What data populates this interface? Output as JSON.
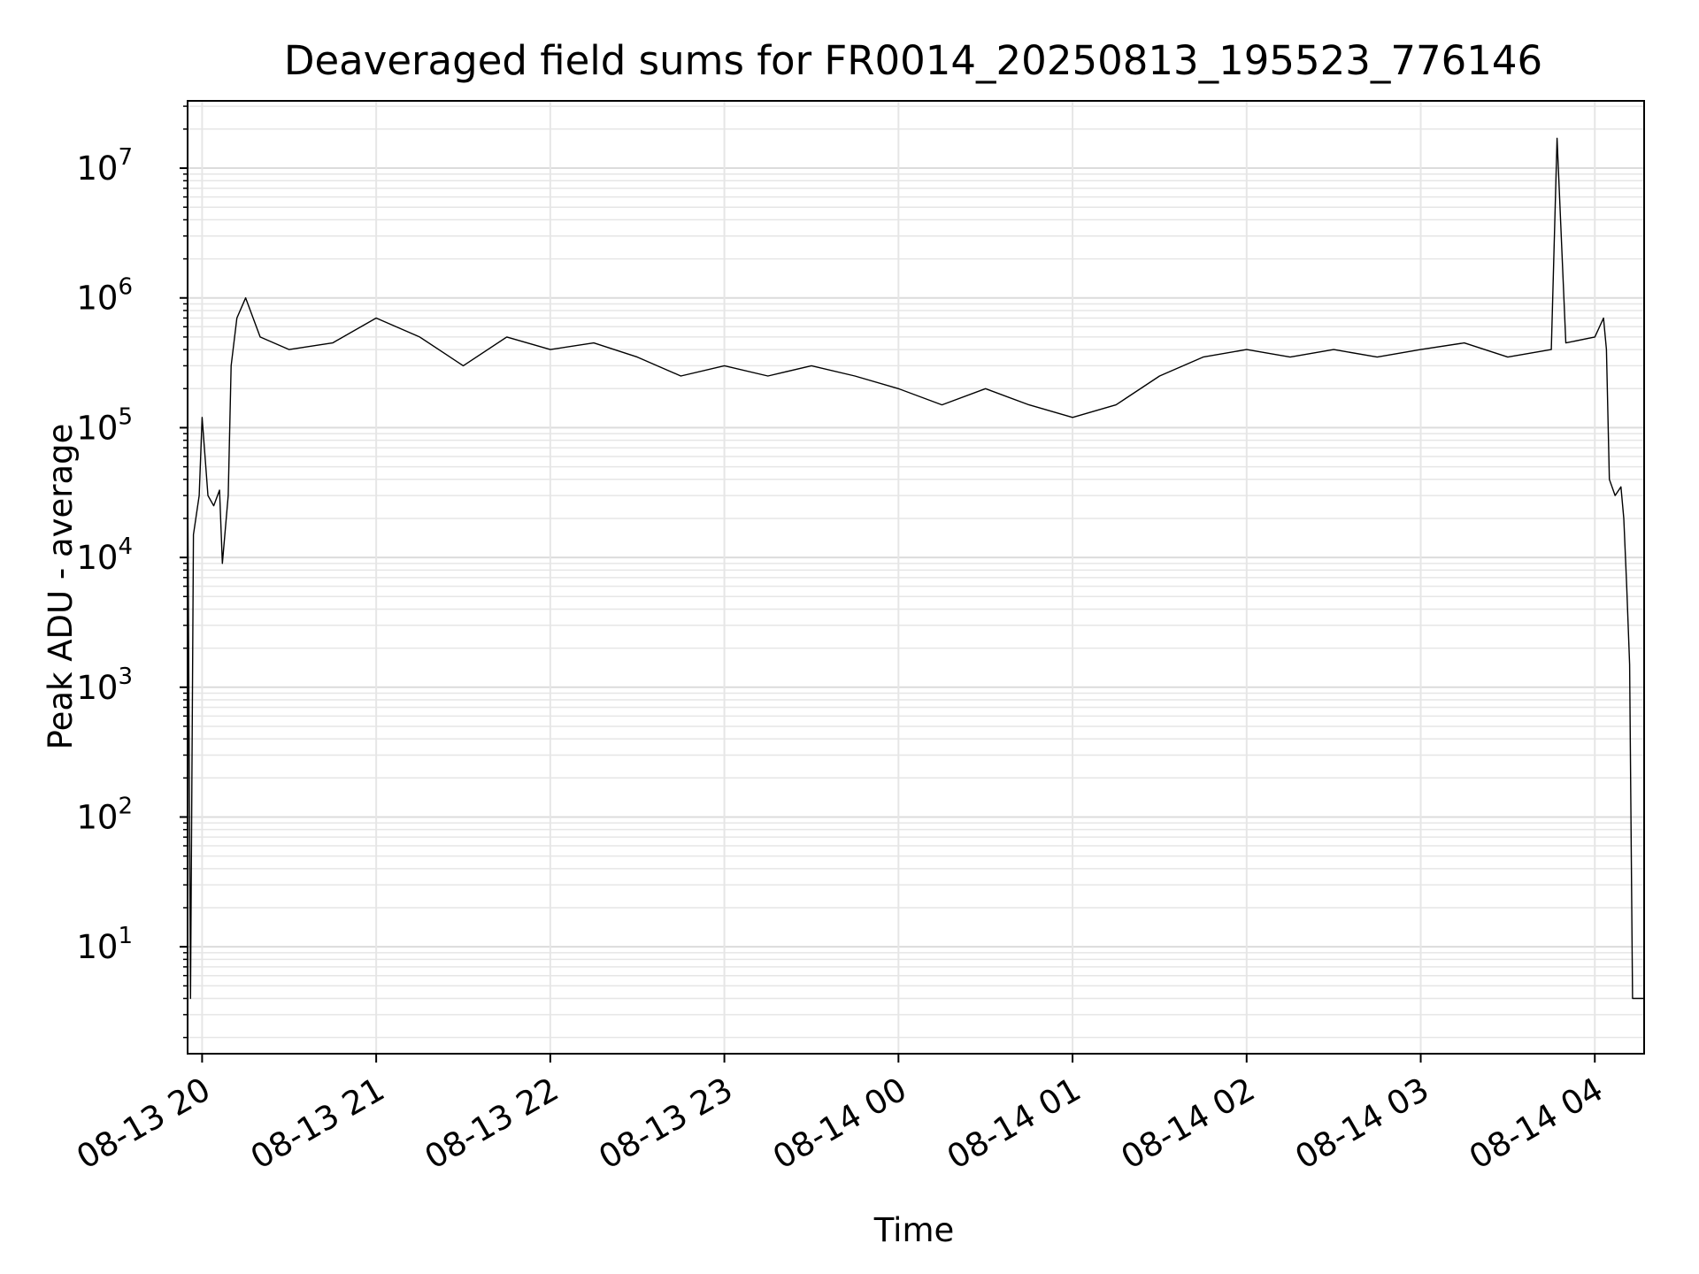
{
  "chart_data": {
    "type": "line",
    "title": "Deaveraged field sums for FR0014_20250813_195523_776146",
    "xlabel": "Time",
    "ylabel": "Peak ADU - average",
    "x_tick_labels": [
      "08-13 20",
      "08-13 21",
      "08-13 22",
      "08-13 23",
      "08-14 00",
      "08-14 01",
      "08-14 02",
      "08-14 03",
      "08-14 04"
    ],
    "y_tick_labels": [
      {
        "base": "10",
        "exp": "1"
      },
      {
        "base": "10",
        "exp": "2"
      },
      {
        "base": "10",
        "exp": "3"
      },
      {
        "base": "10",
        "exp": "4"
      },
      {
        "base": "10",
        "exp": "5"
      },
      {
        "base": "10",
        "exp": "6"
      },
      {
        "base": "10",
        "exp": "7"
      }
    ],
    "y_scale": "log",
    "xlim": [
      "2025-08-13 19:55",
      "2025-08-14 04:17"
    ],
    "ylim": [
      1.5,
      33000000.0
    ],
    "grid": true,
    "line_color": "#000000",
    "series": [
      {
        "x": [
          "2025-08-13 19:55",
          "2025-08-13 19:56",
          "2025-08-13 19:57",
          "2025-08-13 19:59",
          "2025-08-13 20:00",
          "2025-08-13 20:02",
          "2025-08-13 20:04",
          "2025-08-13 20:06",
          "2025-08-13 20:07",
          "2025-08-13 20:09",
          "2025-08-13 20:10",
          "2025-08-13 20:12",
          "2025-08-13 20:15",
          "2025-08-13 20:20",
          "2025-08-13 20:30",
          "2025-08-13 20:45",
          "2025-08-13 21:00",
          "2025-08-13 21:15",
          "2025-08-13 21:30",
          "2025-08-13 21:45",
          "2025-08-13 22:00",
          "2025-08-13 22:15",
          "2025-08-13 22:30",
          "2025-08-13 22:45",
          "2025-08-13 23:00",
          "2025-08-13 23:15",
          "2025-08-13 23:30",
          "2025-08-13 23:45",
          "2025-08-14 00:00",
          "2025-08-14 00:15",
          "2025-08-14 00:30",
          "2025-08-14 00:45",
          "2025-08-14 01:00",
          "2025-08-14 01:15",
          "2025-08-14 01:30",
          "2025-08-14 01:45",
          "2025-08-14 02:00",
          "2025-08-14 02:15",
          "2025-08-14 02:30",
          "2025-08-14 02:45",
          "2025-08-14 03:00",
          "2025-08-14 03:15",
          "2025-08-14 03:30",
          "2025-08-14 03:45",
          "2025-08-14 03:47",
          "2025-08-14 03:50",
          "2025-08-14 04:00",
          "2025-08-14 04:03",
          "2025-08-14 04:04",
          "2025-08-14 04:05",
          "2025-08-14 04:07",
          "2025-08-14 04:09",
          "2025-08-14 04:10",
          "2025-08-14 04:11",
          "2025-08-14 04:12",
          "2025-08-14 04:13",
          "2025-08-14 04:14",
          "2025-08-14 04:17"
        ],
        "y": [
          60000,
          4,
          15000,
          30000,
          120000,
          30000,
          25000,
          33000,
          9000,
          30000,
          300000,
          700000,
          1000000,
          500000,
          400000,
          450000,
          700000,
          500000,
          300000,
          500000,
          400000,
          450000,
          350000,
          250000,
          300000,
          250000,
          300000,
          250000,
          200000,
          150000,
          200000,
          150000,
          120000,
          150000,
          250000,
          350000,
          400000,
          350000,
          400000,
          350000,
          400000,
          450000,
          350000,
          400000,
          17000000,
          450000,
          500000,
          700000,
          400000,
          40000,
          30000,
          35000,
          20000,
          6000,
          1500,
          4,
          4,
          4
        ]
      }
    ]
  }
}
